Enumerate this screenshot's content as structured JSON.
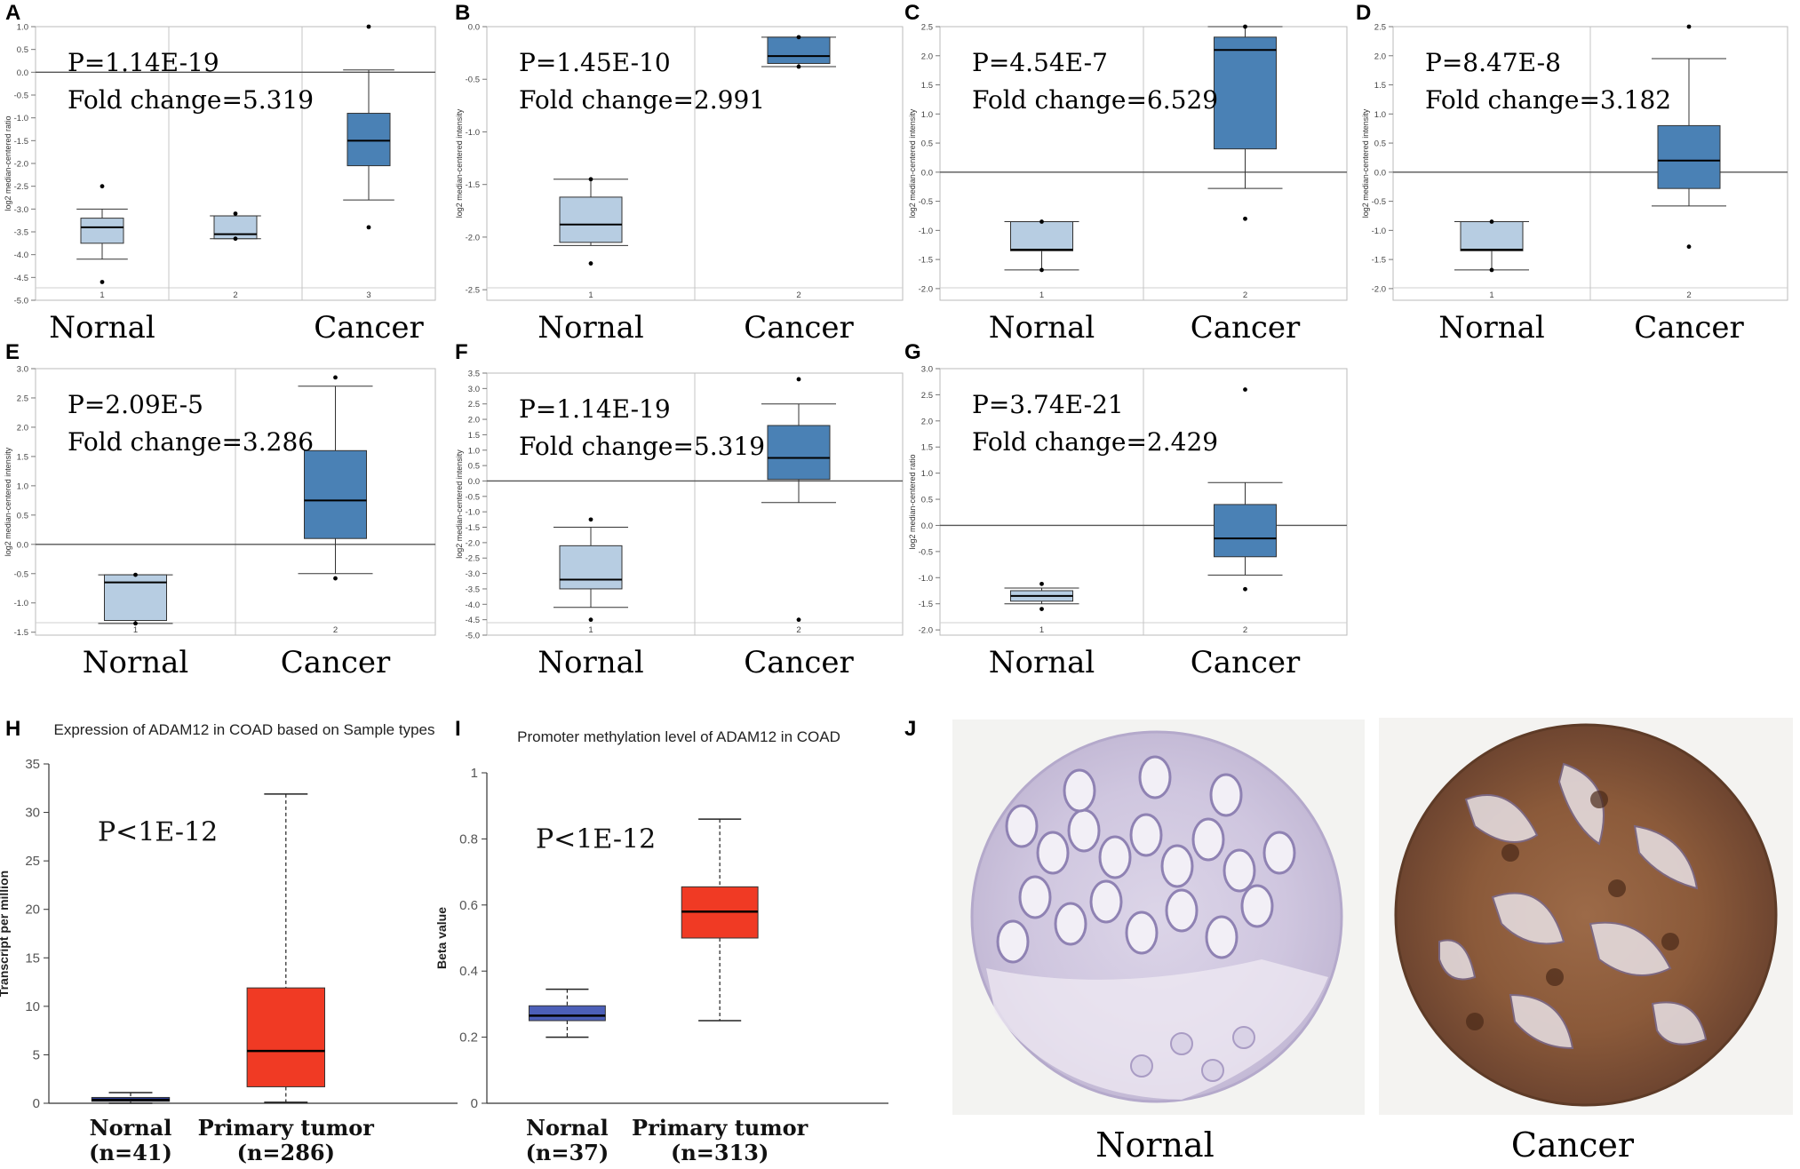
{
  "figure": {
    "panel_labels": [
      "A",
      "B",
      "C",
      "D",
      "E",
      "F",
      "G",
      "H",
      "I",
      "J"
    ]
  },
  "chart_data": [
    {
      "id": "A",
      "type": "box",
      "ylabel": "log2 median-centered ratio",
      "ylim": [
        -5.0,
        1.0
      ],
      "yticks": [
        "1.0",
        "0.5",
        "0.0",
        "-0.5",
        "-1.0",
        "-1.5",
        "-2.0",
        "-2.5",
        "-3.0",
        "-3.5",
        "-4.0",
        "-4.5",
        "-5.0"
      ],
      "ytick_values": [
        1.0,
        0.5,
        0.0,
        -0.5,
        -1.0,
        -1.5,
        -2.0,
        -2.5,
        -3.0,
        -3.5,
        -4.0,
        -4.5,
        -5.0
      ],
      "reference_line": 0.0,
      "group_labels": [
        "Nornal",
        "Cancer"
      ],
      "annotations": [
        "P=1.14E-19",
        "Fold change=5.319"
      ],
      "boxes": [
        {
          "tick": "1",
          "whisker_low": -4.1,
          "q1": -3.75,
          "median": -3.4,
          "q3": -3.2,
          "whisker_high": -3.0,
          "outliers": [
            -4.6,
            -2.5
          ],
          "color": "#b7cde2"
        },
        {
          "tick": "2",
          "whisker_low": -3.65,
          "q1": -3.65,
          "median": -3.55,
          "q3": -3.15,
          "whisker_high": -3.15,
          "outliers": [
            -3.65,
            -3.1
          ],
          "color": "#b7cde2"
        },
        {
          "tick": "3",
          "whisker_low": -2.8,
          "q1": -2.05,
          "median": -1.5,
          "q3": -0.9,
          "whisker_high": 0.05,
          "outliers": [
            -3.4,
            1.0
          ],
          "color": "#4a81b5"
        }
      ]
    },
    {
      "id": "B",
      "type": "box",
      "ylabel": "log2 median-centered intensity",
      "ylim": [
        -2.6,
        0.0
      ],
      "yticks": [
        "0.0",
        "-0.5",
        "-1.0",
        "-1.5",
        "-2.0",
        "-2.5"
      ],
      "ytick_values": [
        0.0,
        -0.5,
        -1.0,
        -1.5,
        -2.0,
        -2.5
      ],
      "reference_line": null,
      "group_labels": [
        "Nornal",
        "Cancer"
      ],
      "annotations": [
        "P=1.45E-10",
        "Fold change=2.991"
      ],
      "boxes": [
        {
          "tick": "1",
          "whisker_low": -2.08,
          "q1": -2.05,
          "median": -1.88,
          "q3": -1.62,
          "whisker_high": -1.45,
          "outliers": [
            -2.25,
            -1.45
          ],
          "color": "#b7cde2"
        },
        {
          "tick": "2",
          "whisker_low": -0.38,
          "q1": -0.35,
          "median": -0.28,
          "q3": -0.1,
          "whisker_high": -0.1,
          "outliers": [
            -0.38,
            -0.1
          ],
          "color": "#4a81b5"
        }
      ]
    },
    {
      "id": "C",
      "type": "box",
      "ylabel": "log2 median-centered intensity",
      "ylim": [
        -2.2,
        2.5
      ],
      "yticks": [
        "2.5",
        "2.0",
        "1.5",
        "1.0",
        "0.5",
        "0.0",
        "-0.5",
        "-1.0",
        "-1.5",
        "-2.0"
      ],
      "ytick_values": [
        2.5,
        2.0,
        1.5,
        1.0,
        0.5,
        0.0,
        -0.5,
        -1.0,
        -1.5,
        -2.0
      ],
      "reference_line": 0.0,
      "group_labels": [
        "Nornal",
        "Cancer"
      ],
      "annotations": [
        "P=4.54E-7",
        "Fold change=6.529"
      ],
      "boxes": [
        {
          "tick": "1",
          "whisker_low": -1.68,
          "q1": -1.35,
          "median": -1.33,
          "q3": -0.85,
          "whisker_high": -0.85,
          "outliers": [
            -1.68,
            -0.85
          ],
          "color": "#b7cde2"
        },
        {
          "tick": "2",
          "whisker_low": -0.28,
          "q1": 0.4,
          "median": 2.1,
          "q3": 2.32,
          "whisker_high": 2.5,
          "outliers": [
            -0.8,
            2.5
          ],
          "color": "#4a81b5"
        }
      ]
    },
    {
      "id": "D",
      "type": "box",
      "ylabel": "log2 median-centered intensity",
      "ylim": [
        -2.2,
        2.5
      ],
      "yticks": [
        "2.5",
        "2.0",
        "1.5",
        "1.0",
        "0.5",
        "0.0",
        "-0.5",
        "-1.0",
        "-1.5",
        "-2.0"
      ],
      "ytick_values": [
        2.5,
        2.0,
        1.5,
        1.0,
        0.5,
        0.0,
        -0.5,
        -1.0,
        -1.5,
        -2.0
      ],
      "reference_line": 0.0,
      "group_labels": [
        "Nornal",
        "Cancer"
      ],
      "annotations": [
        "P=8.47E-8",
        "Fold change=3.182"
      ],
      "boxes": [
        {
          "tick": "1",
          "whisker_low": -1.68,
          "q1": -1.35,
          "median": -1.33,
          "q3": -0.85,
          "whisker_high": -0.85,
          "outliers": [
            -1.68,
            -0.85
          ],
          "color": "#b7cde2"
        },
        {
          "tick": "2",
          "whisker_low": -0.58,
          "q1": -0.28,
          "median": 0.2,
          "q3": 0.8,
          "whisker_high": 1.95,
          "outliers": [
            -1.28,
            2.5
          ],
          "color": "#4a81b5"
        }
      ]
    },
    {
      "id": "E",
      "type": "box",
      "ylabel": "log2 median-centered intensity",
      "ylim": [
        -1.55,
        3.0
      ],
      "yticks": [
        "3.0",
        "2.5",
        "2.0",
        "1.5",
        "1.0",
        "0.5",
        "0.0",
        "-0.5",
        "-1.0",
        "-1.5"
      ],
      "ytick_values": [
        3.0,
        2.5,
        2.0,
        1.5,
        1.0,
        0.5,
        0.0,
        -0.5,
        -1.0,
        -1.5
      ],
      "reference_line": 0.0,
      "group_labels": [
        "Nornal",
        "Cancer"
      ],
      "annotations": [
        "P=2.09E-5",
        "Fold change=3.286"
      ],
      "boxes": [
        {
          "tick": "1",
          "whisker_low": -1.35,
          "q1": -1.3,
          "median": -0.65,
          "q3": -0.52,
          "whisker_high": -0.52,
          "outliers": [
            -1.35,
            -0.52
          ],
          "color": "#b7cde2"
        },
        {
          "tick": "2",
          "whisker_low": -0.5,
          "q1": 0.1,
          "median": 0.75,
          "q3": 1.6,
          "whisker_high": 2.7,
          "outliers": [
            -0.58,
            2.85
          ],
          "color": "#4a81b5"
        }
      ]
    },
    {
      "id": "F",
      "type": "box",
      "ylabel": "log2 median-centered intensity",
      "ylim": [
        -5.0,
        3.5
      ],
      "yticks": [
        "3.5",
        "3.0",
        "2.5",
        "2.0",
        "1.5",
        "1.0",
        "0.5",
        "0.0",
        "-0.5",
        "-1.0",
        "-1.5",
        "-2.0",
        "-2.5",
        "-3.0",
        "-3.5",
        "-4.0",
        "-4.5",
        "-5.0"
      ],
      "ytick_values": [
        3.5,
        3.0,
        2.5,
        2.0,
        1.5,
        1.0,
        0.5,
        0.0,
        -0.5,
        -1.0,
        -1.5,
        -2.0,
        -2.5,
        -3.0,
        -3.5,
        -4.0,
        -4.5,
        -5.0
      ],
      "reference_line": 0.0,
      "group_labels": [
        "Nornal",
        "Cancer"
      ],
      "annotations": [
        "P=1.14E-19",
        "Fold change=5.319"
      ],
      "boxes": [
        {
          "tick": "1",
          "whisker_low": -4.1,
          "q1": -3.5,
          "median": -3.2,
          "q3": -2.1,
          "whisker_high": -1.5,
          "outliers": [
            -4.5,
            -1.25
          ],
          "color": "#b7cde2"
        },
        {
          "tick": "2",
          "whisker_low": -0.7,
          "q1": 0.05,
          "median": 0.75,
          "q3": 1.8,
          "whisker_high": 2.5,
          "outliers": [
            -4.5,
            3.3
          ],
          "color": "#4a81b5"
        }
      ]
    },
    {
      "id": "G",
      "type": "box",
      "ylabel": "log2 median-centered ratio",
      "ylim": [
        -2.1,
        3.0
      ],
      "yticks": [
        "3.0",
        "2.5",
        "2.0",
        "1.5",
        "1.0",
        "0.5",
        "0.0",
        "-0.5",
        "-1.0",
        "-1.5",
        "-2.0"
      ],
      "ytick_values": [
        3.0,
        2.5,
        2.0,
        1.5,
        1.0,
        0.5,
        0.0,
        -0.5,
        -1.0,
        -1.5,
        -2.0
      ],
      "reference_line": 0.0,
      "group_labels": [
        "Nornal",
        "Cancer"
      ],
      "annotations": [
        "P=3.74E-21",
        "Fold change=2.429"
      ],
      "boxes": [
        {
          "tick": "1",
          "whisker_low": -1.5,
          "q1": -1.45,
          "median": -1.35,
          "q3": -1.25,
          "whisker_high": -1.2,
          "outliers": [
            -1.6,
            -1.12
          ],
          "color": "#b7cde2"
        },
        {
          "tick": "2",
          "whisker_low": -0.95,
          "q1": -0.6,
          "median": -0.25,
          "q3": 0.4,
          "whisker_high": 0.82,
          "outliers": [
            -1.22,
            2.6
          ],
          "color": "#4a81b5"
        }
      ]
    },
    {
      "id": "H",
      "type": "box",
      "title": "Expression of ADAM12 in COAD based on Sample types",
      "ylabel": "Transcript per million",
      "ylim": [
        0,
        35
      ],
      "yticks": [
        "0",
        "5",
        "10",
        "15",
        "20",
        "25",
        "30",
        "35"
      ],
      "ytick_values": [
        0,
        5,
        10,
        15,
        20,
        25,
        30,
        35
      ],
      "annotations": [
        "P<1E-12"
      ],
      "categories": [
        {
          "name": "Nornal",
          "n": "(n=41)",
          "whisker_low": 0.0,
          "q1": 0.2,
          "median": 0.35,
          "q3": 0.6,
          "whisker_high": 1.1,
          "color": "#3344aa"
        },
        {
          "name": "Primary tumor",
          "n": "(n=286)",
          "whisker_low": 0.1,
          "q1": 1.7,
          "median": 5.4,
          "q3": 11.9,
          "whisker_high": 31.9,
          "color": "#f03a24"
        }
      ]
    },
    {
      "id": "I",
      "type": "box",
      "title": "Promoter methylation level of ADAM12 in COAD",
      "ylabel": "Beta value",
      "ylim": [
        0,
        1
      ],
      "yticks": [
        "0",
        "0.2",
        "0.4",
        "0.6",
        "0.8",
        "1"
      ],
      "ytick_values": [
        0,
        0.2,
        0.4,
        0.6,
        0.8,
        1
      ],
      "annotations": [
        "P<1E-12"
      ],
      "categories": [
        {
          "name": "Nornal",
          "n": "(n=37)",
          "whisker_low": 0.2,
          "q1": 0.25,
          "median": 0.265,
          "q3": 0.295,
          "whisker_high": 0.345,
          "color": "#4c5fb8"
        },
        {
          "name": "Primary tumor",
          "n": "(n=313)",
          "whisker_low": 0.25,
          "q1": 0.5,
          "median": 0.58,
          "q3": 0.655,
          "whisker_high": 0.86,
          "color": "#f03a24"
        }
      ]
    }
  ],
  "histology": {
    "labels": [
      "Nornal",
      "Cancer"
    ]
  }
}
